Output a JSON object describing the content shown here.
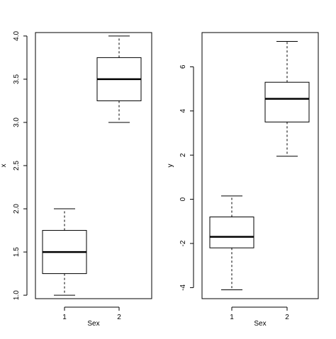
{
  "chart_data": [
    {
      "type": "box",
      "xlabel": "Sex",
      "ylabel": "x",
      "ylim": [
        0.96,
        4.04
      ],
      "yticks": [
        1.0,
        1.5,
        2.0,
        2.5,
        3.0,
        3.5,
        4.0
      ],
      "ytick_labels": [
        "1.0",
        "1.5",
        "2.0",
        "2.5",
        "3.0",
        "3.5",
        "4.0"
      ],
      "categories": [
        "1",
        "2"
      ],
      "boxes": [
        {
          "category": "1",
          "whisker_low": 1.0,
          "q1": 1.25,
          "median": 1.5,
          "q3": 1.75,
          "whisker_high": 2.0
        },
        {
          "category": "2",
          "whisker_low": 3.0,
          "q1": 3.25,
          "median": 3.5,
          "q3": 3.75,
          "whisker_high": 4.0
        }
      ]
    },
    {
      "type": "box",
      "xlabel": "Sex",
      "ylabel": "y",
      "ylim": [
        -4.5,
        7.55
      ],
      "yticks": [
        -4,
        -2,
        0,
        2,
        4,
        6
      ],
      "ytick_labels": [
        "-4",
        "-2",
        "0",
        "2",
        "4",
        "6"
      ],
      "categories": [
        "1",
        "2"
      ],
      "boxes": [
        {
          "category": "1",
          "whisker_low": -4.1,
          "q1": -2.2,
          "median": -1.7,
          "q3": -0.8,
          "whisker_high": 0.15
        },
        {
          "category": "2",
          "whisker_low": 1.95,
          "q1": 3.5,
          "median": 4.55,
          "q3": 5.3,
          "whisker_high": 7.15
        }
      ]
    }
  ]
}
